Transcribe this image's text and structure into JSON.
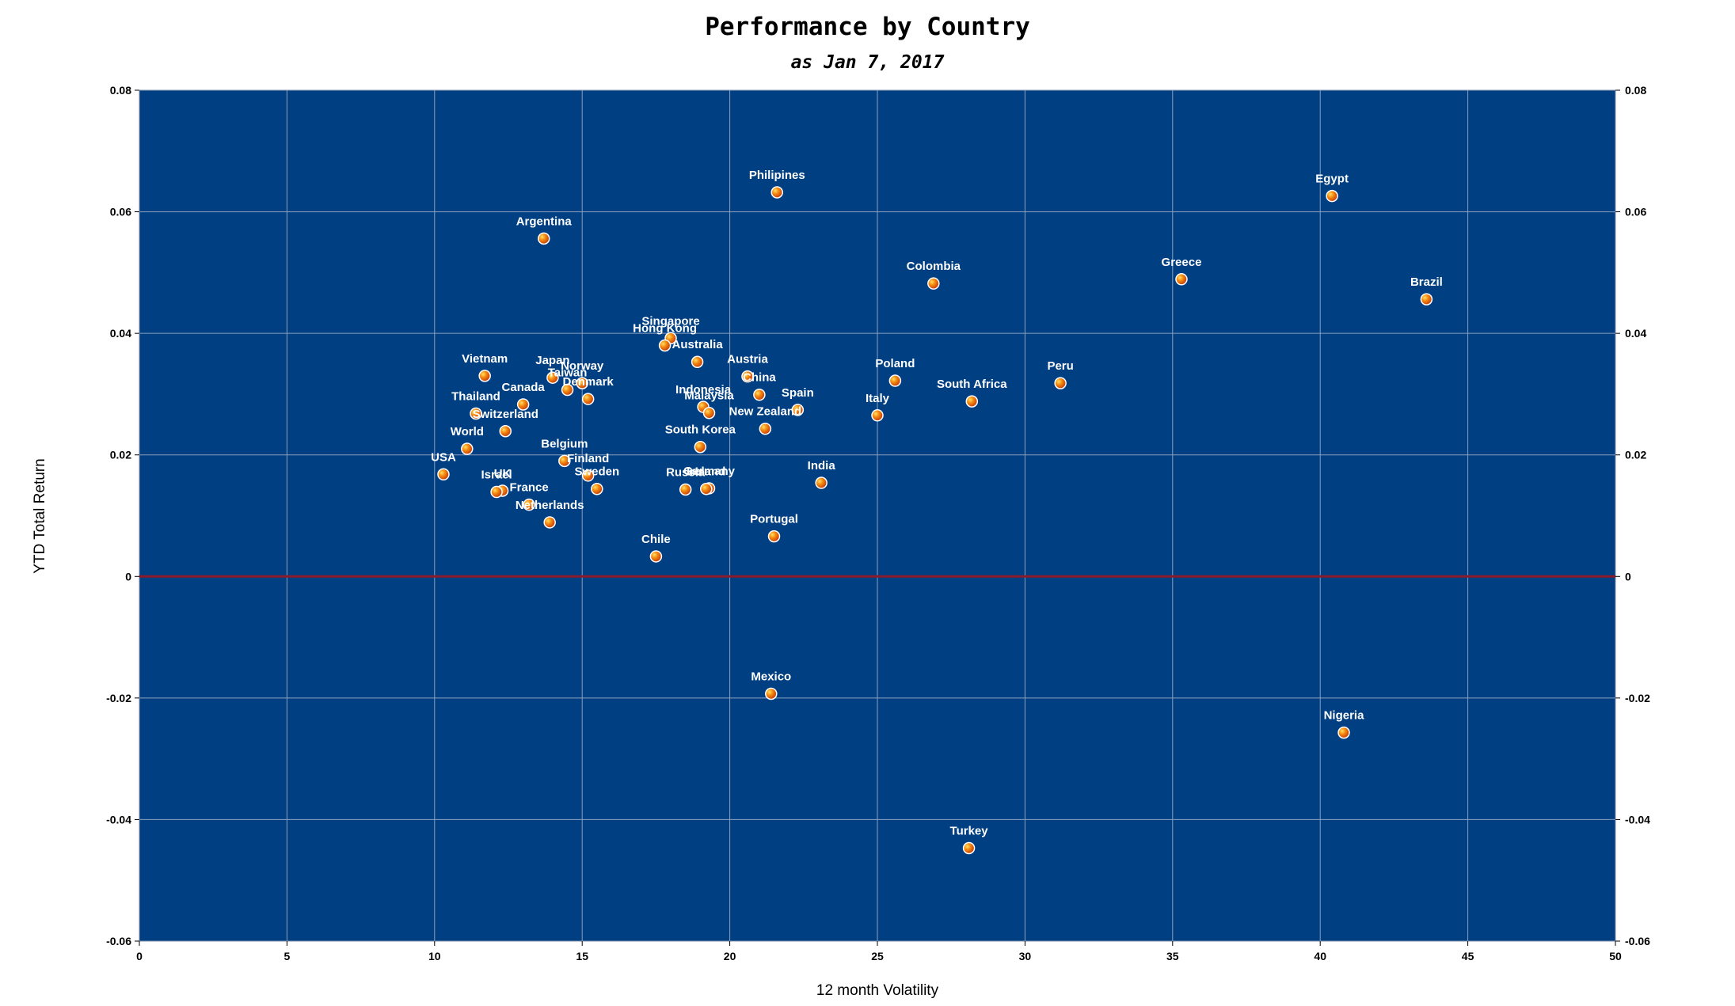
{
  "chart_data": {
    "type": "scatter",
    "title": "Performance by Country",
    "subtitle": "as Jan 7, 2017",
    "xlabel": "12 month Volatility",
    "ylabel": "YTD Total Return",
    "xlim": [
      0,
      50
    ],
    "ylim": [
      -0.06,
      0.08
    ],
    "xticks": [
      "0",
      "5",
      "10",
      "15",
      "20",
      "25",
      "30",
      "35",
      "40",
      "45",
      "50"
    ],
    "yticks": [
      "0.08",
      "0.06",
      "0.04",
      "0.02",
      "0",
      "-0.02",
      "-0.04",
      "-0.06"
    ],
    "grid": true,
    "zero_line": true,
    "colors": {
      "plot_bg": "#003f82",
      "grid": "#8aa0c0",
      "zero_line": "#8b1a2a",
      "marker": "#f07a10",
      "marker_highlight": "#ffd04a",
      "label": "#ffffff"
    },
    "points": [
      {
        "label": "Philipines",
        "x": 21.6,
        "y": 0.0632
      },
      {
        "label": "Egypt",
        "x": 40.4,
        "y": 0.0626
      },
      {
        "label": "Argentina",
        "x": 13.7,
        "y": 0.0556
      },
      {
        "label": "Colombia",
        "x": 26.9,
        "y": 0.0482
      },
      {
        "label": "Greece",
        "x": 35.3,
        "y": 0.0489
      },
      {
        "label": "Brazil",
        "x": 43.6,
        "y": 0.0456
      },
      {
        "label": "Singapore",
        "x": 18.0,
        "y": 0.0392
      },
      {
        "label": "Hong Kong",
        "x": 17.8,
        "y": 0.038
      },
      {
        "label": "Australia",
        "x": 18.9,
        "y": 0.0353
      },
      {
        "label": "Vietnam",
        "x": 11.7,
        "y": 0.033
      },
      {
        "label": "Japan",
        "x": 14.0,
        "y": 0.0327
      },
      {
        "label": "Norway",
        "x": 15.0,
        "y": 0.0318
      },
      {
        "label": "Taiwan",
        "x": 14.5,
        "y": 0.0307
      },
      {
        "label": "Denmark",
        "x": 15.2,
        "y": 0.0292
      },
      {
        "label": "Austria",
        "x": 20.6,
        "y": 0.0329
      },
      {
        "label": "China",
        "x": 21.0,
        "y": 0.0299
      },
      {
        "label": "Poland",
        "x": 25.6,
        "y": 0.0322
      },
      {
        "label": "Peru",
        "x": 31.2,
        "y": 0.0318
      },
      {
        "label": "South Africa",
        "x": 28.2,
        "y": 0.0288
      },
      {
        "label": "Canada",
        "x": 13.0,
        "y": 0.0283
      },
      {
        "label": "Thailand",
        "x": 11.4,
        "y": 0.0268
      },
      {
        "label": "Indonesia",
        "x": 19.1,
        "y": 0.0279
      },
      {
        "label": "Malaysia",
        "x": 19.3,
        "y": 0.0269
      },
      {
        "label": "Spain",
        "x": 22.3,
        "y": 0.0274
      },
      {
        "label": "Italy",
        "x": 25.0,
        "y": 0.0265
      },
      {
        "label": "New Zealand",
        "x": 21.2,
        "y": 0.0243
      },
      {
        "label": "Switzerland",
        "x": 12.4,
        "y": 0.0239
      },
      {
        "label": "World",
        "x": 11.1,
        "y": 0.021
      },
      {
        "label": "South Korea",
        "x": 19.0,
        "y": 0.0213
      },
      {
        "label": "Belgium",
        "x": 14.4,
        "y": 0.019
      },
      {
        "label": "Finland",
        "x": 15.2,
        "y": 0.0166
      },
      {
        "label": "USA",
        "x": 10.3,
        "y": 0.0168
      },
      {
        "label": "India",
        "x": 23.1,
        "y": 0.0154
      },
      {
        "label": "Sweden",
        "x": 15.5,
        "y": 0.0144
      },
      {
        "label": "Russia",
        "x": 18.5,
        "y": 0.0143
      },
      {
        "label": "Germany",
        "x": 19.3,
        "y": 0.0145
      },
      {
        "label": "Ireland",
        "x": 19.2,
        "y": 0.0144
      },
      {
        "label": "UK",
        "x": 12.3,
        "y": 0.0141
      },
      {
        "label": "Israel",
        "x": 12.1,
        "y": 0.0139
      },
      {
        "label": "France",
        "x": 13.2,
        "y": 0.0118
      },
      {
        "label": "Netherlands",
        "x": 13.9,
        "y": 0.0089
      },
      {
        "label": "Portugal",
        "x": 21.5,
        "y": 0.0066
      },
      {
        "label": "Chile",
        "x": 17.5,
        "y": 0.0033
      },
      {
        "label": "Mexico",
        "x": 21.4,
        "y": -0.0193
      },
      {
        "label": "Nigeria",
        "x": 40.8,
        "y": -0.0257
      },
      {
        "label": "Turkey",
        "x": 28.1,
        "y": -0.0447
      }
    ]
  }
}
